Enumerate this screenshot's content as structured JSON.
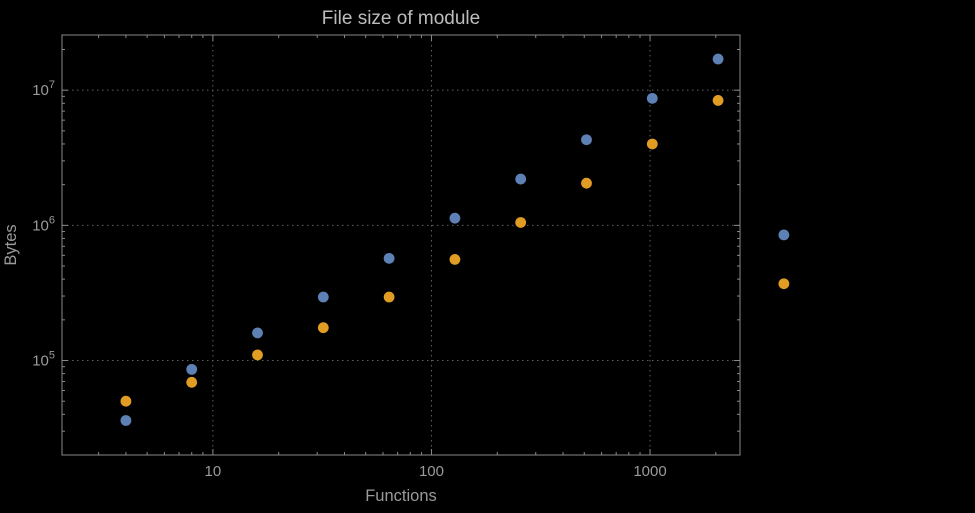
{
  "chart_data": {
    "type": "scatter",
    "title": "File size of module",
    "xlabel": "Functions",
    "ylabel": "Bytes",
    "x_scale": "log",
    "y_scale": "log",
    "xlim": [
      2.04,
      2580
    ],
    "ylim": [
      20000,
      25600000
    ],
    "grid": true,
    "legend": "none",
    "x_ticks": [
      {
        "value": 10,
        "label": "10"
      },
      {
        "value": 100,
        "label": "100"
      },
      {
        "value": 1000,
        "label": "1000"
      }
    ],
    "y_ticks": [
      {
        "value": 100000,
        "base": "10",
        "exp": "5"
      },
      {
        "value": 1000000,
        "base": "10",
        "exp": "6"
      },
      {
        "value": 10000000,
        "base": "10",
        "exp": "7"
      }
    ],
    "series": [
      {
        "color": "#5E81B5",
        "marker": "circle",
        "points": [
          [
            4,
            36000
          ],
          [
            8,
            86000
          ],
          [
            16,
            160000
          ],
          [
            32,
            295000
          ],
          [
            64,
            570000
          ],
          [
            128,
            1130000
          ],
          [
            256,
            2200000
          ],
          [
            512,
            4300000
          ],
          [
            1024,
            8700000
          ],
          [
            2048,
            17000000
          ],
          [
            4096,
            850000
          ]
        ]
      },
      {
        "color": "#E19C24",
        "marker": "circle",
        "points": [
          [
            4,
            50000
          ],
          [
            8,
            69000
          ],
          [
            16,
            110000
          ],
          [
            32,
            175000
          ],
          [
            64,
            295000
          ],
          [
            128,
            560000
          ],
          [
            256,
            1050000
          ],
          [
            512,
            2050000
          ],
          [
            1024,
            4000000
          ],
          [
            2048,
            8400000
          ],
          [
            4096,
            370000
          ]
        ]
      }
    ]
  },
  "style": {
    "background": "#000000",
    "grid_color": "#5f5f5f",
    "frame_color": "#8a8a8a",
    "tick_label_color": "#9a9a9a",
    "title_color": "#bdbdbd",
    "axis_label_color": "#9a9a9a",
    "point_radius": 5.4
  }
}
